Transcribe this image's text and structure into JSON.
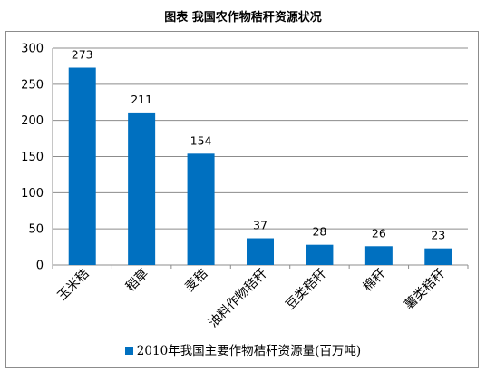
{
  "caption": "图表   我国农作物秸秆资源状况",
  "chart_data": {
    "type": "bar",
    "categories": [
      "玉米秸",
      "稻草",
      "麦秸",
      "油料作物秸秆",
      "豆类秸秆",
      "棉秆",
      "薯类秸秆"
    ],
    "series": [
      {
        "name": "2010年我国主要作物秸秆资源量(百万吨)",
        "values": [
          273,
          211,
          154,
          37,
          28,
          26,
          23
        ]
      }
    ],
    "data_labels": [
      "273",
      "211",
      "154",
      "37",
      "28",
      "26",
      "23"
    ],
    "yticks": [
      "0",
      "50",
      "100",
      "150",
      "200",
      "250",
      "300"
    ],
    "ylim": [
      0,
      300
    ],
    "grid": true,
    "legend_position": "bottom",
    "colors": {
      "bar": "#0070C0",
      "grid": "#8c8c8c"
    }
  }
}
